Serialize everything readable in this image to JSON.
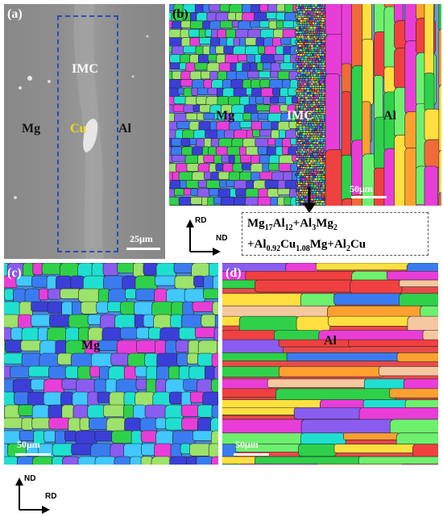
{
  "panels": {
    "a": {
      "label": "(a)",
      "phases": {
        "mg": "Mg",
        "imc": "IMC",
        "cu": "Cu",
        "al": "Al"
      },
      "scale": "25μm"
    },
    "b": {
      "label": "(b)",
      "phases": {
        "mg": "Mg",
        "imc": "IMC",
        "al": "Al"
      },
      "scale": "50μm"
    },
    "c": {
      "label": "(c)",
      "phases": {
        "mg": "Mg"
      },
      "scale": "50μm"
    },
    "d": {
      "label": "(d)",
      "phases": {
        "al": "Al"
      },
      "scale": "50μm"
    }
  },
  "axes_top": {
    "vertical": "RD",
    "horizontal": "ND"
  },
  "axes_bottom": {
    "vertical": "ND",
    "horizontal": "RD"
  },
  "formula": {
    "line1": [
      "Mg",
      "17",
      "Al",
      "12",
      "+Al",
      "3",
      "Mg",
      "2"
    ],
    "line2": [
      "+Al",
      "0.92",
      "Cu",
      "1.08",
      "Mg+Al",
      "2",
      "Cu"
    ]
  },
  "colors": {
    "sem_background": "#8c8c8c",
    "imc_box": "#2a4bb0",
    "cu_label": "#f5d90a",
    "grain_palette": [
      "#2fd14a",
      "#3a7cf0",
      "#1fe0d0",
      "#8a5cf0",
      "#3b3fd8",
      "#9de26a",
      "#e93dd8",
      "#f04040",
      "#ffa030",
      "#ffe040",
      "#40c8ff",
      "#6ef06e"
    ]
  }
}
